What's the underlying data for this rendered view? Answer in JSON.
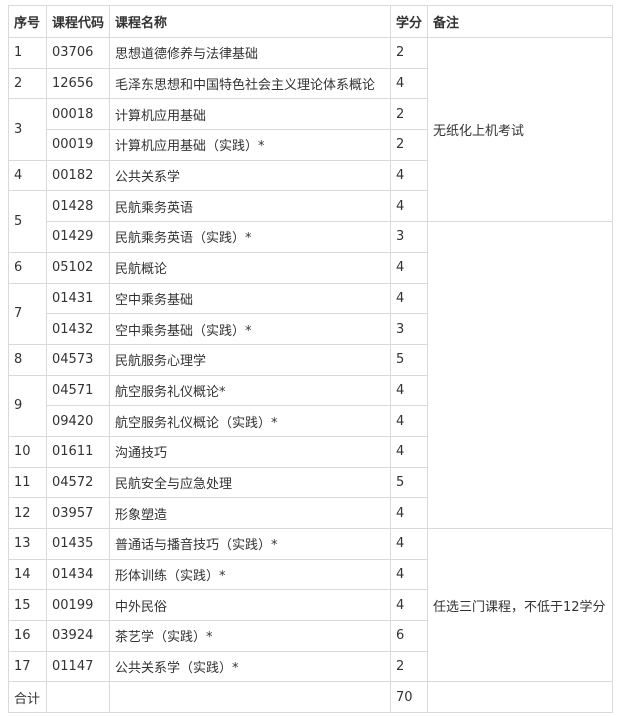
{
  "table": {
    "header": [
      "序号",
      "课程代码",
      "课程名称",
      "学分",
      "备注"
    ],
    "rows": [
      {
        "seq": "1",
        "code": "03706",
        "name": "思想道德修养与法律基础",
        "credit": 2
      },
      {
        "seq": "2",
        "code": "12656",
        "name": "毛泽东思想和中国特色社会主义理论体系概论",
        "credit": 4
      },
      {
        "seq": "3",
        "code": "00018",
        "name": "计算机应用基础",
        "credit": 2
      },
      {
        "code": "00019",
        "name": "计算机应用基础（实践）*",
        "credit": 2
      },
      {
        "seq": "4",
        "code": "00182",
        "name": "公共关系学",
        "credit": 4
      },
      {
        "seq": "5",
        "code": "01428",
        "name": "民航乘务英语",
        "credit": 4
      },
      {
        "code": "01429",
        "name": "民航乘务英语（实践）*",
        "credit": 3
      },
      {
        "seq": "6",
        "code": "05102",
        "name": "民航概论",
        "credit": 4
      },
      {
        "seq": "7",
        "code": "01431",
        "name": "空中乘务基础",
        "credit": 4
      },
      {
        "code": "01432",
        "name": "空中乘务基础（实践）*",
        "credit": 3
      },
      {
        "seq": "8",
        "code": "04573",
        "name": "民航服务心理学",
        "credit": 5
      },
      {
        "seq": "9",
        "code": "04571",
        "name": "航空服务礼仪概论*",
        "credit": 4
      },
      {
        "code": "09420",
        "name": "航空服务礼仪概论（实践）*",
        "credit": 4
      },
      {
        "seq": "10",
        "code": "01611",
        "name": "沟通技巧",
        "credit": 4
      },
      {
        "seq": "11",
        "code": "04572",
        "name": "民航安全与应急处理",
        "credit": 5
      },
      {
        "seq": "12",
        "code": "03957",
        "name": "形象塑造",
        "credit": 4
      },
      {
        "seq": "13",
        "code": "01435",
        "name": "普通话与播音技巧（实践）*",
        "credit": 4
      },
      {
        "seq": "14",
        "code": "01434",
        "name": "形体训练（实践）*",
        "credit": 4
      },
      {
        "seq": "15",
        "code": "00199",
        "name": "中外民俗",
        "credit": 4
      },
      {
        "seq": "16",
        "code": "03924",
        "name": "茶艺学（实践）*",
        "credit": 6
      },
      {
        "seq": "17",
        "code": "01147",
        "name": "公共关系学（实践）*",
        "credit": 2
      }
    ],
    "remarks": [
      "无纸化上机考试",
      "任选三门课程，不低于12学分"
    ],
    "total": {
      "label": "合计",
      "credits": 70
    }
  }
}
